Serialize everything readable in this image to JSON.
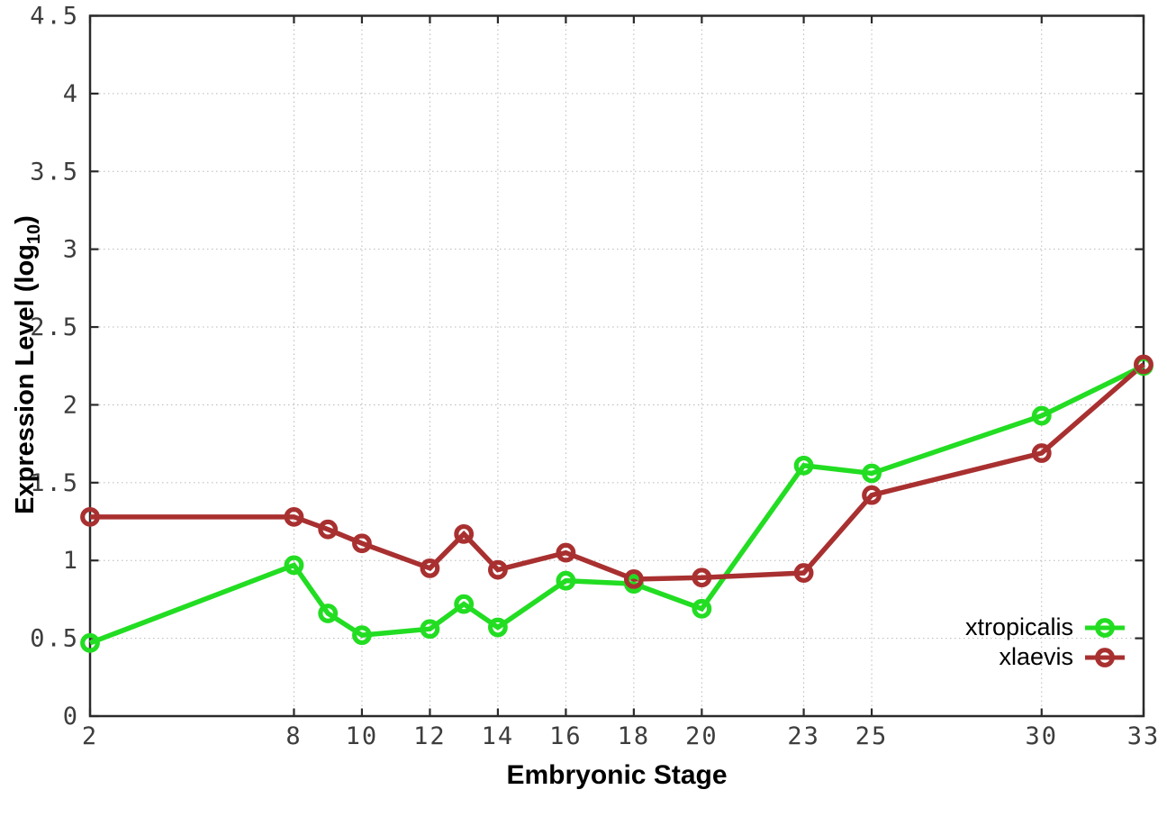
{
  "chart_data": {
    "type": "line",
    "title": "",
    "xlabel": "Embryonic Stage",
    "ylabel": "Expression Level (log10)",
    "ylabel_parts": {
      "main": "Expression Level (log",
      "sub": "10",
      "end": ")"
    },
    "xlim": [
      2,
      33
    ],
    "ylim": [
      0,
      4.5
    ],
    "x_ticks": [
      2,
      8,
      10,
      12,
      14,
      16,
      18,
      20,
      23,
      25,
      30,
      33
    ],
    "y_ticks": [
      0,
      0.5,
      1,
      1.5,
      2,
      2.5,
      3,
      3.5,
      4,
      4.5
    ],
    "grid": true,
    "legend_position": "inside-bottom-right",
    "colors": {
      "grid": "#b8b8b8",
      "border": "#2a2a2a",
      "tick_text": "#3d3d3d"
    },
    "series": [
      {
        "name": "xtropicalis",
        "color": "#22dd22",
        "x": [
          2,
          8,
          9,
          10,
          12,
          13,
          14,
          16,
          18,
          20,
          23,
          25,
          30,
          33
        ],
        "values": [
          0.47,
          0.97,
          0.66,
          0.52,
          0.56,
          0.72,
          0.57,
          0.87,
          0.85,
          0.69,
          1.61,
          1.56,
          1.93,
          2.25
        ]
      },
      {
        "name": "xlaevis",
        "color": "#a93030",
        "x": [
          2,
          8,
          9,
          10,
          12,
          13,
          14,
          16,
          18,
          20,
          23,
          25,
          30,
          33
        ],
        "values": [
          1.28,
          1.28,
          1.2,
          1.11,
          0.95,
          1.17,
          0.94,
          1.05,
          0.88,
          0.89,
          0.92,
          1.42,
          1.69,
          2.26
        ]
      }
    ]
  }
}
